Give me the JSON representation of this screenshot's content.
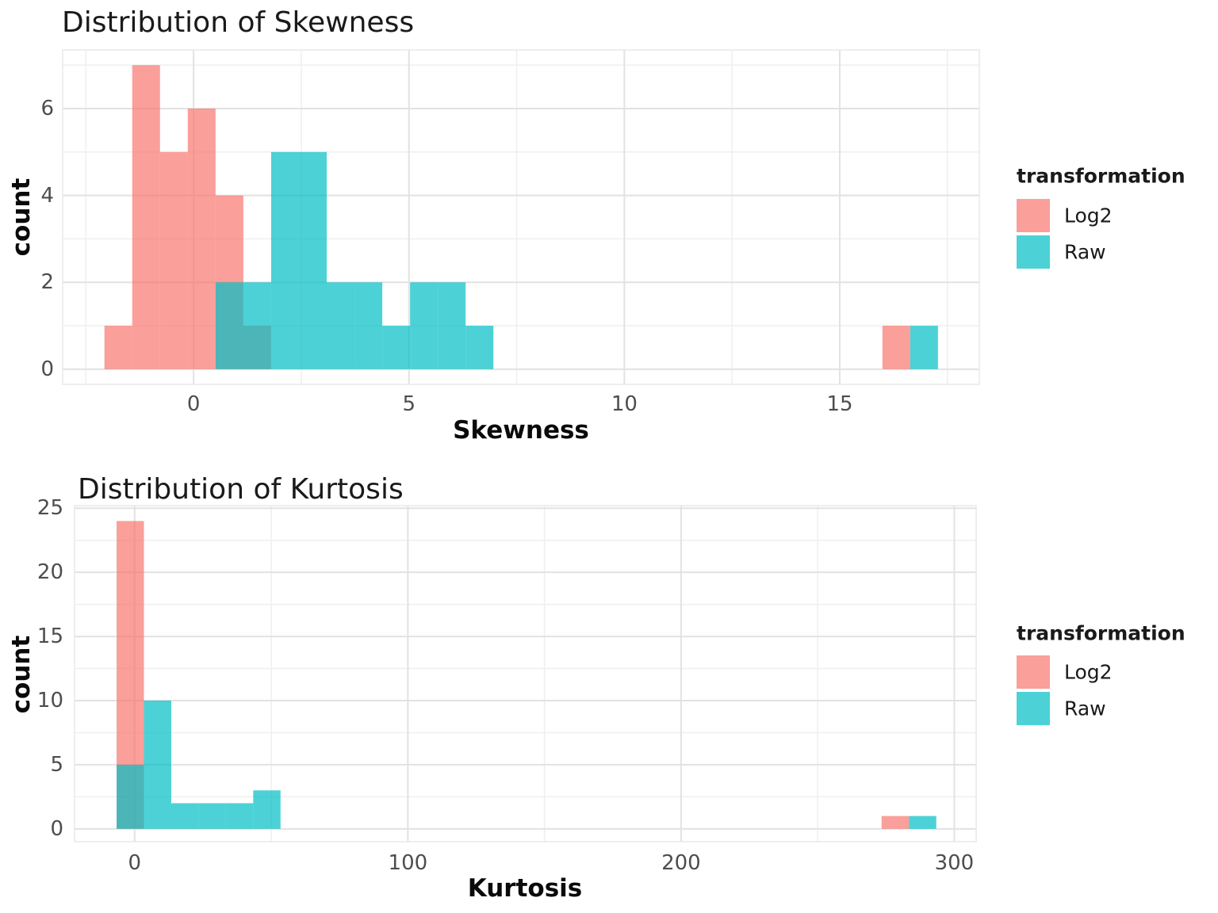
{
  "figure": {
    "background": "#FFFFFF"
  },
  "colors": {
    "grid_major": "#E2E2E2",
    "grid_minor": "#EFEFEF",
    "panel_border": "#E9E9E9",
    "tick_text": "#4D4D4D",
    "title_text": "#1A1A1A",
    "axis_title_text": "#0A0A0A",
    "log2_fill": "#F8766D",
    "raw_fill": "#00BFC4",
    "overlap_visible": "#4BB2B4"
  },
  "charts": [
    {
      "title": "Distribution of Skewness",
      "x_axis_label": "Skewness",
      "y_axis_label": "count",
      "legend": {
        "title": "transformation",
        "items": [
          {
            "label": "Log2",
            "color": "#F8766D"
          },
          {
            "label": "Raw",
            "color": "#00BFC4"
          }
        ]
      },
      "chart_data": {
        "type": "histogram",
        "title": "Distribution of Skewness",
        "xlabel": "Skewness",
        "ylabel": "count",
        "alpha": 0.7,
        "grid": true,
        "legend_position": "right",
        "binwidth": 0.645,
        "xlim": [
          -3.04,
          18.24
        ],
        "ylim": [
          -0.35,
          7.35
        ],
        "x_major_ticks": [
          0,
          5,
          10,
          15
        ],
        "x_minor_ticks": [
          -2.5,
          2.5,
          7.5,
          12.5,
          17.5
        ],
        "y_major_ticks": [
          0,
          2,
          4,
          6
        ],
        "y_minor_ticks": [
          1,
          3,
          5,
          7
        ],
        "series": [
          {
            "name": "Log2",
            "color": "#F8766D",
            "bins": [
              [
                -2.07,
                -1.425,
                1
              ],
              [
                -1.425,
                -0.78,
                7
              ],
              [
                -0.78,
                -0.135,
                5
              ],
              [
                -0.135,
                0.51,
                6
              ],
              [
                0.51,
                1.155,
                4
              ],
              [
                1.155,
                1.8,
                1
              ],
              [
                15.99,
                16.635,
                1
              ]
            ]
          },
          {
            "name": "Raw",
            "color": "#00BFC4",
            "bins": [
              [
                0.51,
                1.155,
                2
              ],
              [
                1.155,
                1.8,
                2
              ],
              [
                1.8,
                2.445,
                5
              ],
              [
                2.445,
                3.09,
                5
              ],
              [
                3.09,
                3.735,
                2
              ],
              [
                3.735,
                4.38,
                2
              ],
              [
                4.38,
                5.025,
                1
              ],
              [
                5.025,
                5.67,
                2
              ],
              [
                5.67,
                6.315,
                2
              ],
              [
                6.315,
                6.96,
                1
              ],
              [
                16.635,
                17.28,
                1
              ]
            ]
          }
        ]
      }
    },
    {
      "title": "Distribution of Kurtosis",
      "x_axis_label": "Kurtosis",
      "y_axis_label": "count",
      "legend": {
        "title": "transformation",
        "items": [
          {
            "label": "Log2",
            "color": "#F8766D"
          },
          {
            "label": "Raw",
            "color": "#00BFC4"
          }
        ]
      },
      "chart_data": {
        "type": "histogram",
        "title": "Distribution of Kurtosis",
        "xlabel": "Kurtosis",
        "ylabel": "count",
        "alpha": 0.7,
        "grid": true,
        "legend_position": "right",
        "binwidth": 10,
        "xlim": [
          -22,
          308
        ],
        "ylim": [
          -1.0,
          25.2
        ],
        "x_major_ticks": [
          0,
          100,
          200,
          300
        ],
        "x_minor_ticks": [
          50,
          150,
          250
        ],
        "y_major_ticks": [
          0,
          5,
          10,
          15,
          20,
          25
        ],
        "y_minor_ticks": [
          2.5,
          7.5,
          12.5,
          17.5,
          22.5
        ],
        "series": [
          {
            "name": "Log2",
            "color": "#F8766D",
            "bins": [
              [
                -6.6,
                3.4,
                24
              ],
              [
                273.4,
                283.4,
                1
              ]
            ]
          },
          {
            "name": "Raw",
            "color": "#00BFC4",
            "bins": [
              [
                -6.6,
                3.4,
                5
              ],
              [
                3.4,
                13.4,
                10
              ],
              [
                13.4,
                23.4,
                2
              ],
              [
                23.4,
                33.4,
                2
              ],
              [
                33.4,
                43.4,
                2
              ],
              [
                43.4,
                53.4,
                3
              ],
              [
                283.4,
                293.4,
                1
              ]
            ]
          }
        ]
      }
    }
  ]
}
